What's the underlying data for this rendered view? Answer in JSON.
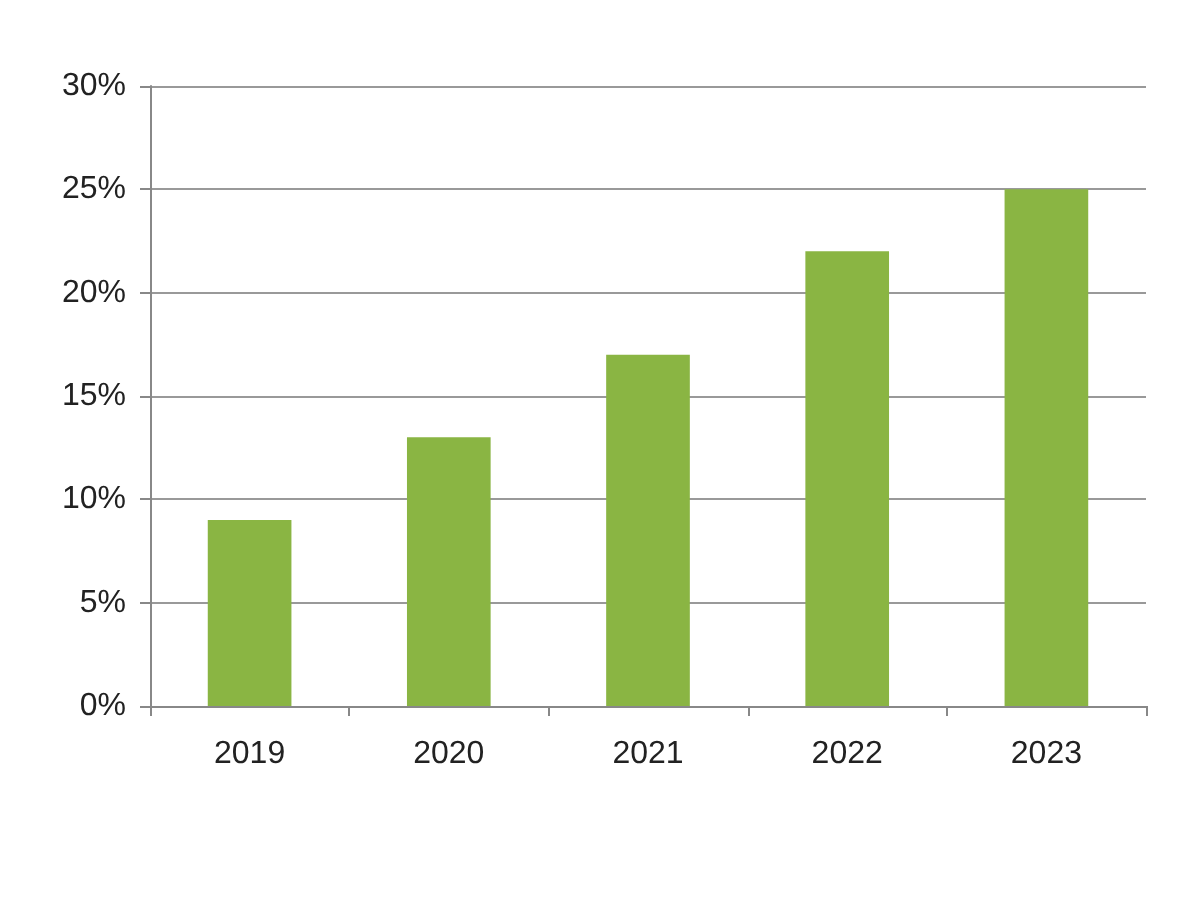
{
  "chart_data": {
    "type": "bar",
    "categories": [
      "2019",
      "2020",
      "2021",
      "2022",
      "2023"
    ],
    "values": [
      9,
      13,
      17,
      22,
      25
    ],
    "color": "#8ab543",
    "ylim": [
      0,
      30
    ],
    "yticks": [
      {
        "value": 0,
        "label": "0%"
      },
      {
        "value": 5,
        "label": "5%"
      },
      {
        "value": 10,
        "label": "10%"
      },
      {
        "value": 15,
        "label": "15%"
      },
      {
        "value": 20,
        "label": "20%"
      },
      {
        "value": 25,
        "label": "25%"
      },
      {
        "value": 30,
        "label": "30%"
      }
    ],
    "grid": "y"
  }
}
